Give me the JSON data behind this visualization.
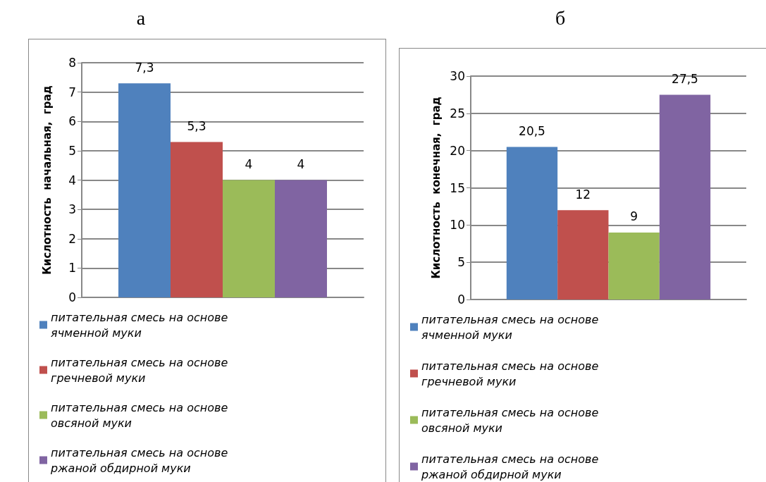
{
  "chart_data": [
    {
      "type": "bar",
      "title": "а",
      "ylabel": "Кислотность  начальная,  град",
      "categories": [
        null
      ],
      "ylim": [
        0,
        8
      ],
      "yticks": [
        0,
        1,
        2,
        3,
        4,
        5,
        6,
        7,
        8
      ],
      "grid": "y",
      "legend": "bottom",
      "series": [
        {
          "name": "питательная смесь на основе ячменной муки",
          "color": "#4f81bd",
          "values": [
            7.3
          ],
          "value_labels": [
            "7,3"
          ]
        },
        {
          "name": "питательная смесь на основе гречневой муки",
          "color": "#c0504d",
          "values": [
            5.3
          ],
          "value_labels": [
            "5,3"
          ]
        },
        {
          "name": "питательная смесь на основе овсяной муки",
          "color": "#9bbb59",
          "values": [
            4
          ],
          "value_labels": [
            "4"
          ]
        },
        {
          "name": "питательная смесь на основе ржаной обдирной муки",
          "color": "#8064a2",
          "values": [
            4
          ],
          "value_labels": [
            "4"
          ]
        }
      ]
    },
    {
      "type": "bar",
      "title": "б",
      "ylabel": "Кислотность  конечная,  град",
      "categories": [
        null
      ],
      "ylim": [
        0,
        30
      ],
      "yticks": [
        0,
        5,
        10,
        15,
        20,
        25,
        30
      ],
      "grid": "y",
      "legend": "bottom",
      "series": [
        {
          "name": "питательная смесь на основе ячменной муки",
          "color": "#4f81bd",
          "values": [
            20.5
          ],
          "value_labels": [
            "20,5"
          ]
        },
        {
          "name": "питательная смесь на основе гречневой муки",
          "color": "#c0504d",
          "values": [
            12
          ],
          "value_labels": [
            "12"
          ]
        },
        {
          "name": "питательная смесь на основе овсяной муки",
          "color": "#9bbb59",
          "values": [
            9
          ],
          "value_labels": [
            "9"
          ]
        },
        {
          "name": "питательная смесь на основе ржаной обдирной муки",
          "color": "#8064a2",
          "values": [
            27.5
          ],
          "value_labels": [
            "27,5"
          ]
        }
      ]
    }
  ]
}
